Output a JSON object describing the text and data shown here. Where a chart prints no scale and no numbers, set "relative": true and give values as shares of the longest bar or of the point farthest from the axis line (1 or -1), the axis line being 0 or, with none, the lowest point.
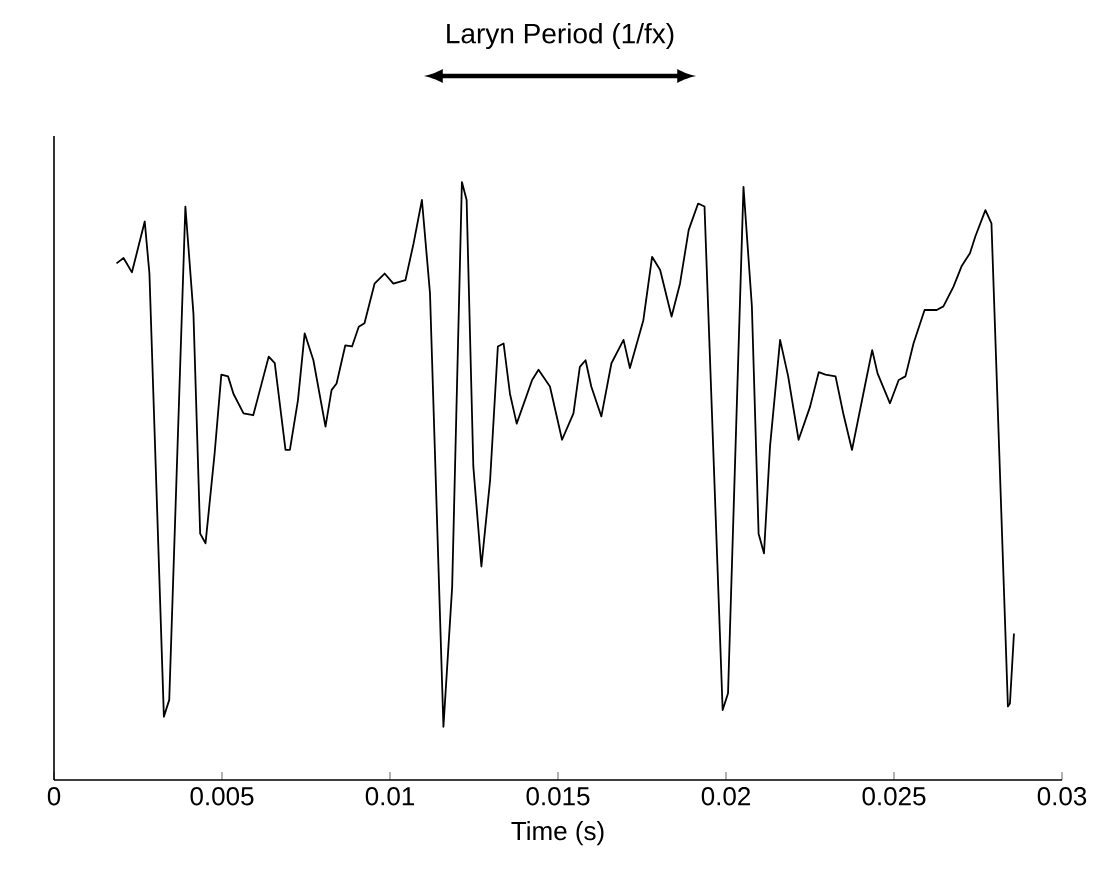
{
  "chart_data": {
    "type": "line",
    "relative": true,
    "xlabel": "Time (s)",
    "annotations": [
      "Laryn Period (1/fx)"
    ],
    "xlim": [
      0,
      0.03
    ],
    "xticks": [
      0,
      0.005,
      0.01,
      0.015,
      0.02,
      0.025,
      0.03
    ],
    "grid": false,
    "marker": "none",
    "line_style": "solid",
    "series": [
      {
        "color": "#000000",
        "x": [
          0.00186,
          0.00207,
          0.00232,
          0.0027,
          0.00284,
          0.00327,
          0.00343,
          0.00391,
          0.00415,
          0.00435,
          0.00451,
          0.00478,
          0.00498,
          0.00518,
          0.00534,
          0.00564,
          0.00593,
          0.00639,
          0.00657,
          0.00689,
          0.00702,
          0.00726,
          0.00746,
          0.00772,
          0.00808,
          0.00826,
          0.00841,
          0.00867,
          0.00887,
          0.00907,
          0.00924,
          0.00954,
          0.00984,
          0.0101,
          0.01046,
          0.0107,
          0.01095,
          0.01119,
          0.01159,
          0.01185,
          0.01214,
          0.01228,
          0.01248,
          0.01272,
          0.01298,
          0.01321,
          0.01338,
          0.01357,
          0.01377,
          0.01423,
          0.01442,
          0.01476,
          0.01512,
          0.01546,
          0.01565,
          0.01582,
          0.01599,
          0.01629,
          0.01659,
          0.01695,
          0.01714,
          0.01754,
          0.0178,
          0.01804,
          0.01838,
          0.01863,
          0.01889,
          0.01917,
          0.01936,
          0.0199,
          0.02006,
          0.02052,
          0.02077,
          0.02097,
          0.02113,
          0.02131,
          0.02161,
          0.02185,
          0.02216,
          0.0225,
          0.02276,
          0.02296,
          0.02326,
          0.02349,
          0.02375,
          0.02413,
          0.02435,
          0.02451,
          0.02488,
          0.02514,
          0.02534,
          0.02558,
          0.02591,
          0.02627,
          0.02647,
          0.02677,
          0.02701,
          0.02726,
          0.02742,
          0.02772,
          0.0279,
          0.02839,
          0.02845,
          0.02857
        ],
        "values": [
          0.864,
          0.873,
          0.849,
          0.934,
          0.847,
          0.106,
          0.134,
          0.959,
          0.78,
          0.412,
          0.396,
          0.546,
          0.678,
          0.675,
          0.646,
          0.613,
          0.61,
          0.708,
          0.697,
          0.552,
          0.552,
          0.635,
          0.747,
          0.702,
          0.591,
          0.652,
          0.663,
          0.727,
          0.725,
          0.758,
          0.764,
          0.83,
          0.847,
          0.83,
          0.836,
          0.897,
          0.97,
          0.814,
          0.089,
          0.323,
          1.0,
          0.97,
          0.524,
          0.357,
          0.502,
          0.725,
          0.73,
          0.646,
          0.596,
          0.669,
          0.686,
          0.658,
          0.569,
          0.613,
          0.691,
          0.702,
          0.658,
          0.608,
          0.697,
          0.736,
          0.689,
          0.769,
          0.875,
          0.853,
          0.775,
          0.83,
          0.92,
          0.964,
          0.959,
          0.117,
          0.145,
          0.992,
          0.792,
          0.412,
          0.379,
          0.558,
          0.736,
          0.675,
          0.569,
          0.624,
          0.682,
          0.678,
          0.675,
          0.613,
          0.552,
          0.658,
          0.719,
          0.68,
          0.63,
          0.669,
          0.675,
          0.73,
          0.786,
          0.786,
          0.792,
          0.825,
          0.859,
          0.881,
          0.909,
          0.953,
          0.931,
          0.123,
          0.128,
          0.245
        ]
      }
    ]
  }
}
